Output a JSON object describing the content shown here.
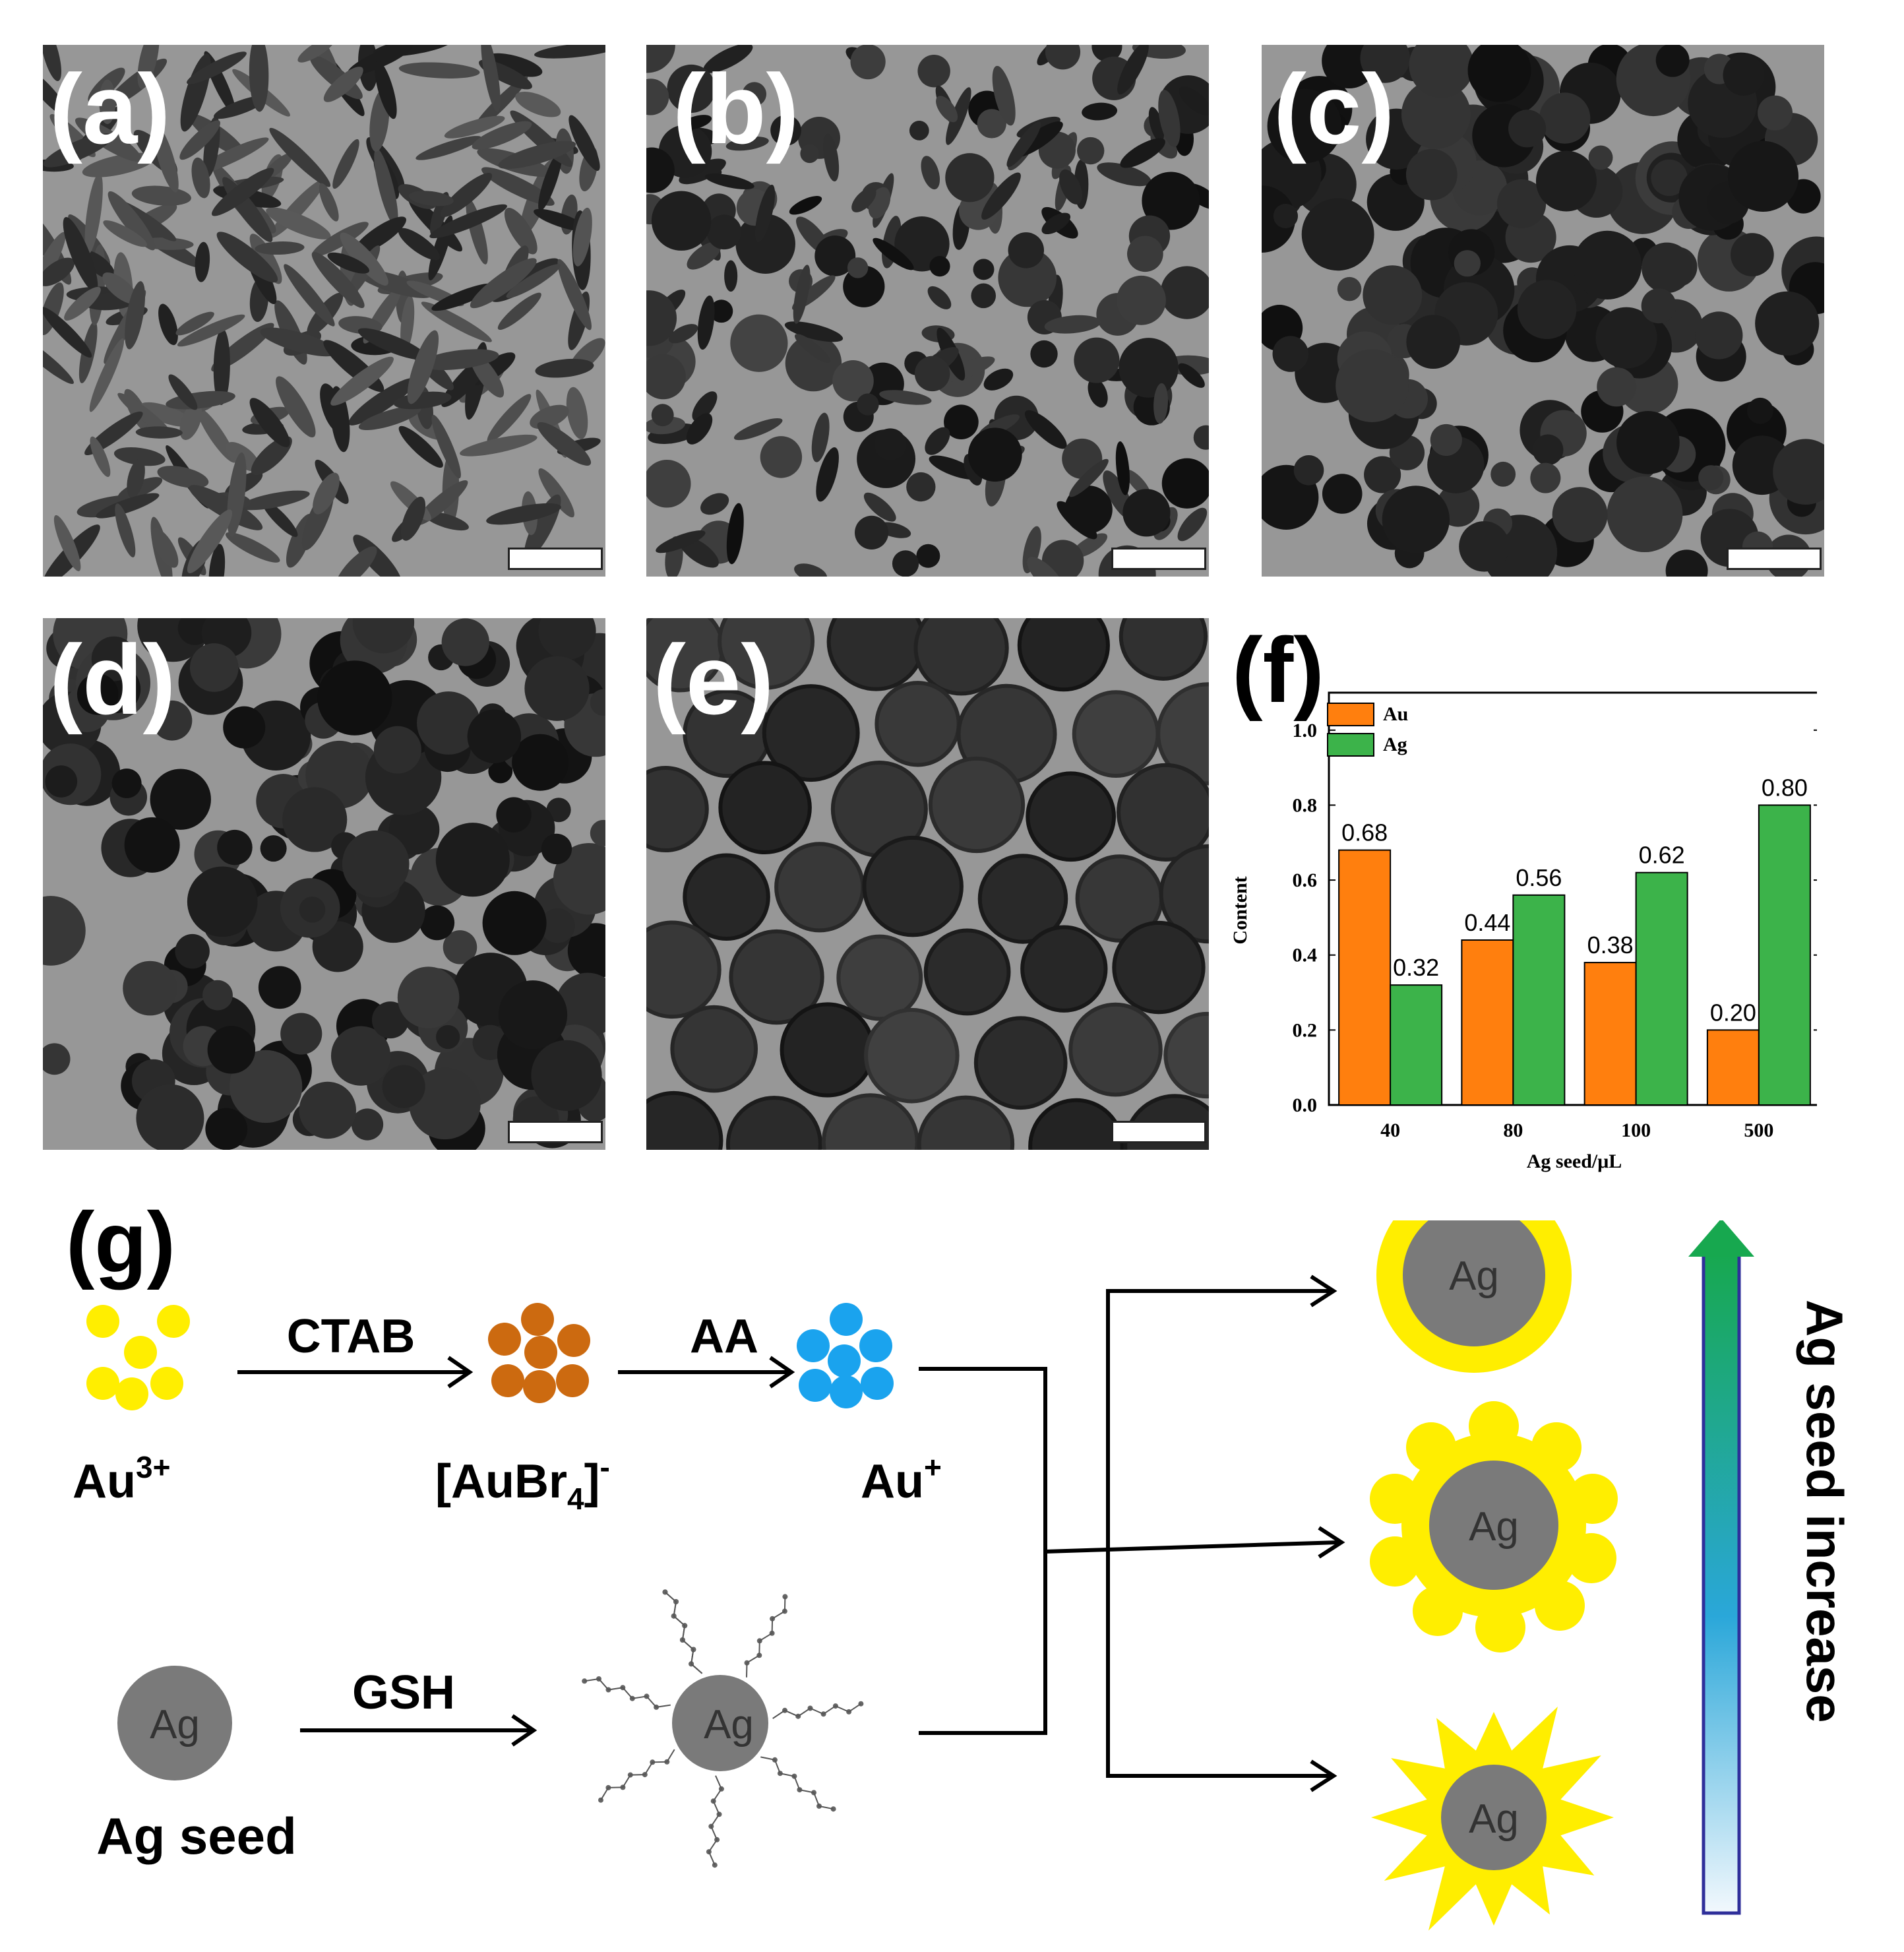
{
  "panels": {
    "a": {
      "label": "(a)"
    },
    "b": {
      "label": "(b)"
    },
    "c": {
      "label": "(c)"
    },
    "d": {
      "label": "(d)"
    },
    "e": {
      "label": "(e)"
    },
    "f": {
      "label": "(f)"
    },
    "g": {
      "label": "(g)"
    }
  },
  "chart_data": {
    "type": "bar",
    "categories": [
      "40",
      "80",
      "100",
      "500"
    ],
    "series": [
      {
        "name": "Au",
        "values": [
          0.68,
          0.44,
          0.38,
          0.2
        ],
        "color": "#ff7f0e"
      },
      {
        "name": "Ag",
        "values": [
          0.32,
          0.56,
          0.62,
          0.8
        ],
        "color": "#3cb34a"
      }
    ],
    "data_labels": [
      [
        "0.68",
        "0.44",
        "0.38",
        "0.20"
      ],
      [
        "0.32",
        "0.56",
        "0.62",
        "0.80"
      ]
    ],
    "xlabel": "Ag seed/μL",
    "ylabel": "Content",
    "ylim": [
      0,
      1.1
    ],
    "yticks": [
      "0.0",
      "0.2",
      "0.4",
      "0.6",
      "0.8",
      "1.0"
    ],
    "legend": "top-left",
    "grid": false
  },
  "scheme": {
    "au3": {
      "base": "Au",
      "sup": "3+"
    },
    "aubr4": {
      "pre": "[AuBr",
      "sub": "4",
      "post": "]",
      "sup": "-"
    },
    "au1": {
      "base": "Au",
      "sup": "+"
    },
    "ctab": "CTAB",
    "aa": "AA",
    "gsh": "GSH",
    "ag": "Ag",
    "ag_seed": "Ag seed",
    "gradient_label": "Ag seed increase",
    "colors": {
      "au3": "#ffee00",
      "aubr4": "#cc6a10",
      "au1": "#1aa3ee",
      "shell": "#ffee00",
      "core": "#7a7a7a"
    }
  }
}
